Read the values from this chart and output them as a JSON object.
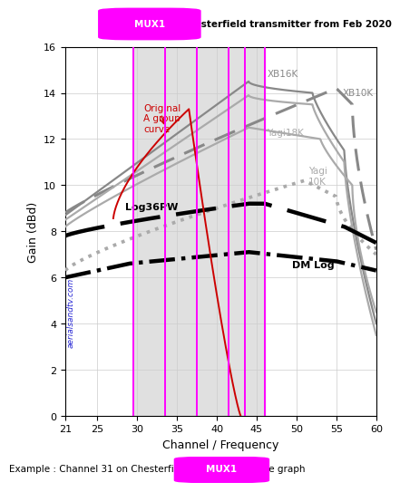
{
  "title_mux": "MUX1",
  "title_rest": "  Chesterfield transmitter from Feb 2020",
  "xlabel": "Channel / Frequency",
  "ylabel": "Gain (dBd)",
  "xlim": [
    21,
    60
  ],
  "ylim": [
    0,
    16
  ],
  "xticks": [
    21,
    25,
    30,
    35,
    40,
    45,
    50,
    55,
    60
  ],
  "yticks": [
    0,
    2,
    4,
    6,
    8,
    10,
    12,
    14,
    16
  ],
  "magenta_lines": [
    29.5,
    33.5,
    37.5,
    41.5,
    43.5,
    46.0
  ],
  "shade_start": 29.5,
  "shade_end": 46.0,
  "watermark": "aerialsandtv.com",
  "footer_text": "Example : Channel 31 on Chesterfield = ",
  "footer_mux": "MUX1",
  "footer_end": " on the graph",
  "label_xb16k": "XB16K",
  "label_xb10k": "XB10K",
  "label_yagi18k": "Yagi18K",
  "label_yagi10k": "Yagi\n10K",
  "label_log36pw": "Log36PW",
  "label_dm_log": "DM Log",
  "label_orig": "Original\nA group\ncurve",
  "color_gray_dark": "#888888",
  "color_gray_mid": "#aaaaaa",
  "color_gray_light": "#bbbbbb",
  "color_black": "#000000",
  "color_red": "#cc0000",
  "color_magenta": "#ff00ff",
  "color_blue": "#0000cc",
  "color_shade": "#e0e0e0"
}
